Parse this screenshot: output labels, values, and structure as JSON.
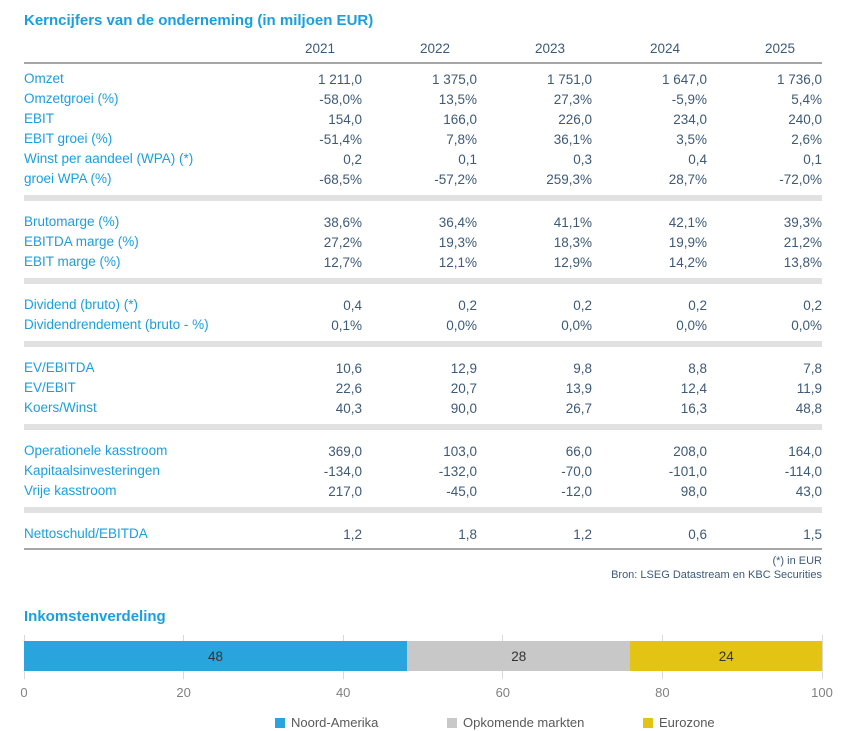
{
  "table": {
    "title": "Kerncijfers van de onderneming (in miljoen EUR)",
    "years": [
      "2021",
      "2022",
      "2023",
      "2024",
      "2025"
    ],
    "sections": [
      {
        "rows": [
          {
            "label": "Omzet",
            "values": [
              "1 211,0",
              "1 375,0",
              "1 751,0",
              "1 647,0",
              "1 736,0"
            ]
          },
          {
            "label": "Omzetgroei (%)",
            "values": [
              "-58,0%",
              "13,5%",
              "27,3%",
              "-5,9%",
              "5,4%"
            ]
          },
          {
            "label": "EBIT",
            "values": [
              "154,0",
              "166,0",
              "226,0",
              "234,0",
              "240,0"
            ]
          },
          {
            "label": "EBIT groei (%)",
            "values": [
              "-51,4%",
              "7,8%",
              "36,1%",
              "3,5%",
              "2,6%"
            ]
          },
          {
            "label": "Winst per aandeel (WPA) (*)",
            "values": [
              "0,2",
              "0,1",
              "0,3",
              "0,4",
              "0,1"
            ]
          },
          {
            "label": "groei WPA (%)",
            "values": [
              "-68,5%",
              "-57,2%",
              "259,3%",
              "28,7%",
              "-72,0%"
            ]
          }
        ]
      },
      {
        "rows": [
          {
            "label": "Brutomarge (%)",
            "values": [
              "38,6%",
              "36,4%",
              "41,1%",
              "42,1%",
              "39,3%"
            ]
          },
          {
            "label": "EBITDA marge (%)",
            "values": [
              "27,2%",
              "19,3%",
              "18,3%",
              "19,9%",
              "21,2%"
            ]
          },
          {
            "label": "EBIT marge (%)",
            "values": [
              "12,7%",
              "12,1%",
              "12,9%",
              "14,2%",
              "13,8%"
            ]
          }
        ]
      },
      {
        "rows": [
          {
            "label": "Dividend (bruto) (*)",
            "values": [
              "0,4",
              "0,2",
              "0,2",
              "0,2",
              "0,2"
            ]
          },
          {
            "label": "Dividendrendement (bruto - %)",
            "values": [
              "0,1%",
              "0,0%",
              "0,0%",
              "0,0%",
              "0,0%"
            ]
          }
        ]
      },
      {
        "rows": [
          {
            "label": "EV/EBITDA",
            "values": [
              "10,6",
              "12,9",
              "9,8",
              "8,8",
              "7,8"
            ]
          },
          {
            "label": "EV/EBIT",
            "values": [
              "22,6",
              "20,7",
              "13,9",
              "12,4",
              "11,9"
            ]
          },
          {
            "label": "Koers/Winst",
            "values": [
              "40,3",
              "90,0",
              "26,7",
              "16,3",
              "48,8"
            ]
          }
        ]
      },
      {
        "rows": [
          {
            "label": "Operationele kasstroom",
            "values": [
              "369,0",
              "103,0",
              "66,0",
              "208,0",
              "164,0"
            ]
          },
          {
            "label": "Kapitaalsinvesteringen",
            "values": [
              "-134,0",
              "-132,0",
              "-70,0",
              "-101,0",
              "-114,0"
            ]
          },
          {
            "label": "Vrije kasstroom",
            "values": [
              "217,0",
              "-45,0",
              "-12,0",
              "98,0",
              "43,0"
            ]
          }
        ]
      },
      {
        "rows": [
          {
            "label": "Nettoschuld/EBITDA",
            "values": [
              "1,2",
              "1,8",
              "1,2",
              "0,6",
              "1,5"
            ]
          }
        ]
      }
    ],
    "footnote": "(*) in EUR",
    "source": "Bron: LSEG Datastream en KBC Securities"
  },
  "chart_data": {
    "type": "bar",
    "orientation": "horizontal",
    "stacked": true,
    "title": "Inkomstenverdeling",
    "series": [
      {
        "name": "Noord-Amerika",
        "value": 48,
        "color": "#29a4dc"
      },
      {
        "name": "Opkomende markten",
        "value": 28,
        "color": "#c8c8c8"
      },
      {
        "name": "Eurozone",
        "value": 24,
        "color": "#e3c414"
      }
    ],
    "x_ticks": [
      0,
      20,
      40,
      60,
      80,
      100
    ],
    "xlim": [
      0,
      100
    ],
    "grid": true,
    "legend_position": "bottom"
  },
  "colors": {
    "accent_blue": "#1a9fdd",
    "value_navy": "#3d5a78",
    "rule_gray": "#a6a6a6",
    "band_gray": "#e1e1e1",
    "grid_gray": "#d9d9d9",
    "bar_blue": "#29a4dc",
    "bar_gray": "#c8c8c8",
    "bar_yellow": "#e3c414"
  }
}
